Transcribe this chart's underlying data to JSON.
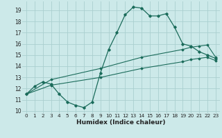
{
  "xlabel": "Humidex (Indice chaleur)",
  "xlim": [
    -0.5,
    23.5
  ],
  "ylim": [
    9.8,
    19.8
  ],
  "yticks": [
    10,
    11,
    12,
    13,
    14,
    15,
    16,
    17,
    18,
    19
  ],
  "xticks": [
    0,
    1,
    2,
    3,
    4,
    5,
    6,
    7,
    8,
    9,
    10,
    11,
    12,
    13,
    14,
    15,
    16,
    17,
    18,
    19,
    20,
    21,
    22,
    23
  ],
  "background_color": "#cce9e9",
  "grid_color": "#aacfcf",
  "line_color": "#1a6b5a",
  "line1_x": [
    0,
    1,
    2,
    3,
    4,
    5,
    6,
    7,
    8,
    9,
    10,
    11,
    12,
    13,
    14,
    15,
    16,
    17,
    18,
    19,
    20,
    21,
    22,
    23
  ],
  "line1_y": [
    11.5,
    12.2,
    12.6,
    12.4,
    11.5,
    10.8,
    10.5,
    10.3,
    10.8,
    13.4,
    15.5,
    17.0,
    18.6,
    19.3,
    19.2,
    18.5,
    18.5,
    18.7,
    17.5,
    16.0,
    15.8,
    15.3,
    15.0,
    14.7
  ],
  "line2_x": [
    0,
    3,
    9,
    14,
    19,
    20,
    21,
    22,
    23
  ],
  "line2_y": [
    11.5,
    12.8,
    13.8,
    14.8,
    15.5,
    15.7,
    15.8,
    15.9,
    14.8
  ],
  "line3_x": [
    0,
    3,
    9,
    14,
    19,
    20,
    21,
    22,
    23
  ],
  "line3_y": [
    11.5,
    12.3,
    13.0,
    13.8,
    14.4,
    14.6,
    14.7,
    14.8,
    14.5
  ]
}
